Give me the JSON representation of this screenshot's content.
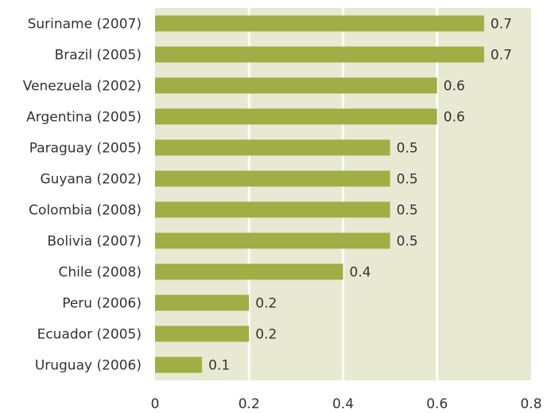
{
  "chart_data": {
    "type": "bar",
    "orientation": "horizontal",
    "categories": [
      "Suriname (2007)",
      "Brazil (2005)",
      "Venezuela (2002)",
      "Argentina (2005)",
      "Paraguay (2005)",
      "Guyana (2002)",
      "Colombia (2008)",
      "Bolivia (2007)",
      "Chile (2008)",
      "Peru (2006)",
      "Ecuador (2005)",
      "Uruguay (2006)"
    ],
    "values": [
      0.7,
      0.7,
      0.6,
      0.6,
      0.5,
      0.5,
      0.5,
      0.5,
      0.4,
      0.2,
      0.2,
      0.1
    ],
    "color": "#a0ae46",
    "xlim": [
      0,
      0.8
    ],
    "xticks": [
      0,
      0.2,
      0.4,
      0.6,
      0.8
    ],
    "grid": true
  }
}
